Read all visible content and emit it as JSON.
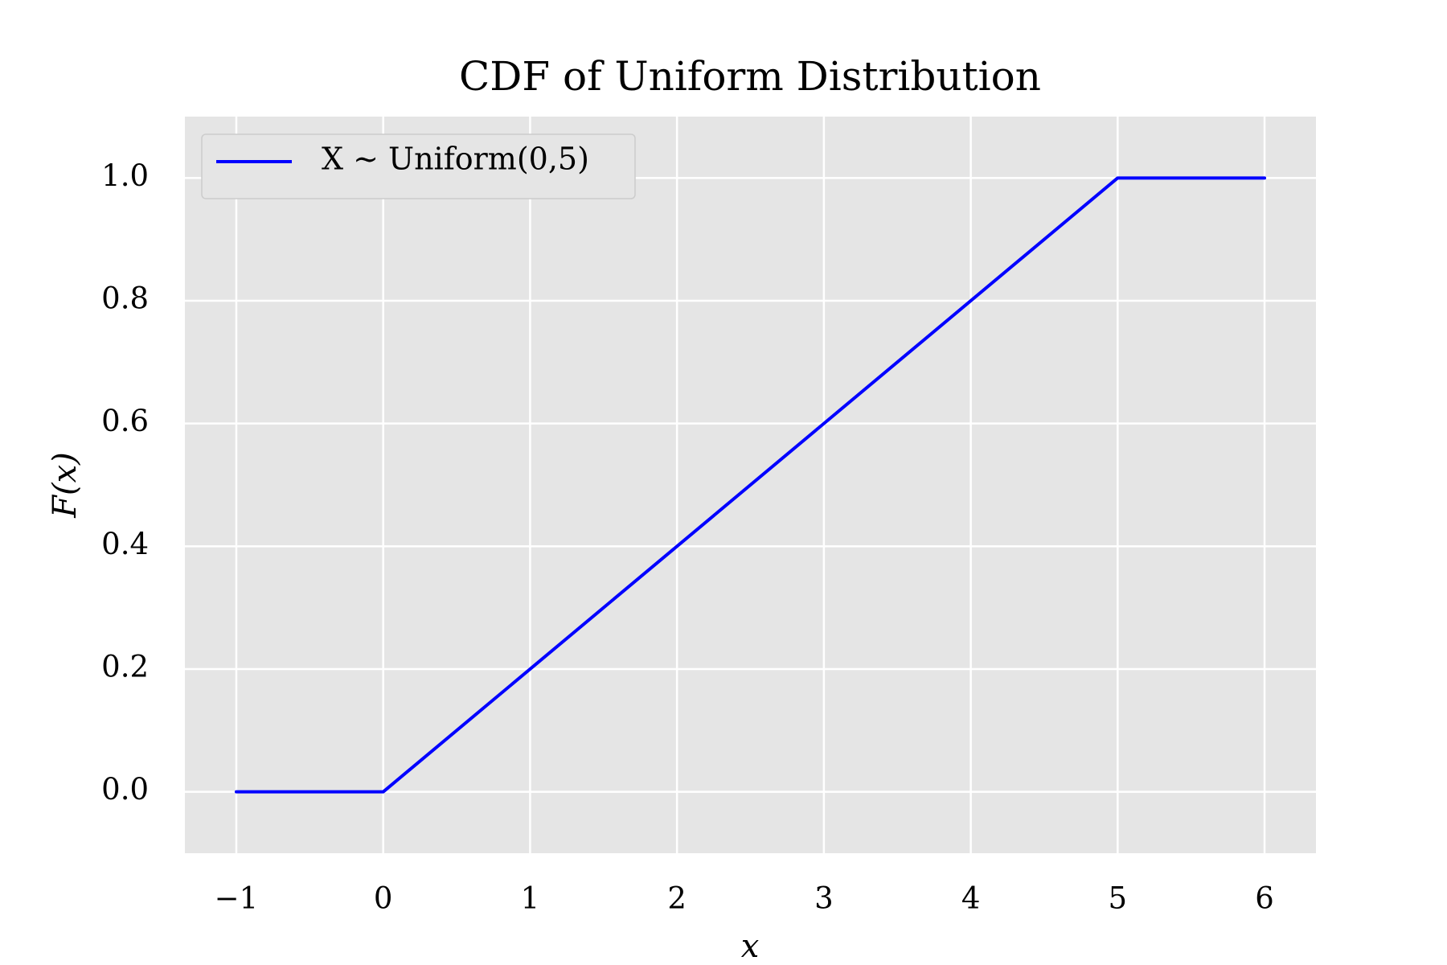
{
  "chart_data": {
    "type": "line",
    "title": "CDF of Uniform Distribution",
    "x_label": "x",
    "y_label": "F(x)",
    "x": [
      -1,
      0,
      5,
      6
    ],
    "series": [
      {
        "name": "X ∼ Uniform(0,5)",
        "color": "#0000ff",
        "values": [
          0,
          0,
          1,
          1
        ]
      }
    ],
    "xlim": [
      -1.35,
      6.35
    ],
    "ylim": [
      -0.1,
      1.1
    ],
    "xticks": [
      {
        "value": -1,
        "label": "−1"
      },
      0,
      1,
      2,
      3,
      4,
      5,
      6
    ],
    "yticks": [
      {
        "value": 0,
        "label": "0.0"
      },
      0.2,
      0.4,
      0.6,
      0.8,
      {
        "value": 1,
        "label": "1.0"
      }
    ],
    "grid": true,
    "legend": "upper left"
  }
}
